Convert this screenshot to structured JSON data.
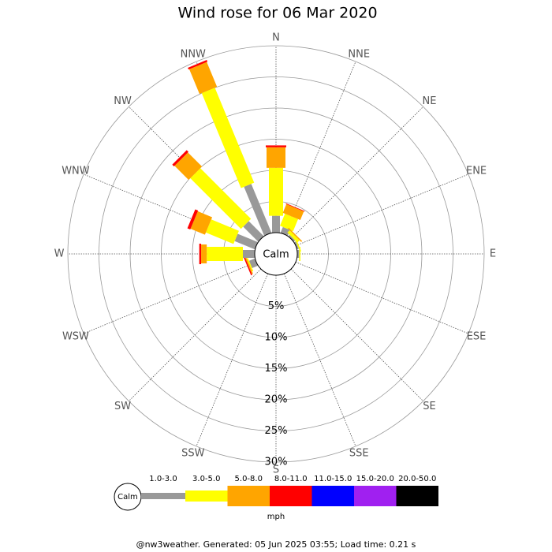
{
  "chart_data": {
    "type": "windrose",
    "title": "Wind rose for 06 Mar 2020",
    "categories": [
      "N",
      "NNE",
      "NE",
      "ENE",
      "E",
      "ESE",
      "SE",
      "SSE",
      "S",
      "SSW",
      "SW",
      "WSW",
      "W",
      "WNW",
      "NW",
      "NNW"
    ],
    "calm_label": "Calm",
    "series": [
      {
        "name": "1.0-3.0",
        "color": "#999999",
        "values": [
          2.7,
          1.0,
          0.3,
          0.3,
          0.3,
          0,
          0,
          0,
          0,
          0,
          0,
          1.0,
          1.9,
          3.5,
          3.4,
          8.5
        ]
      },
      {
        "name": "3.0-5.0",
        "color": "#ffff00",
        "values": [
          7.7,
          2.1,
          0.5,
          0.2,
          0.2,
          0,
          0,
          0,
          0,
          0,
          0,
          0.2,
          5.8,
          4.8,
          11.5,
          16.5
        ]
      },
      {
        "name": "5.0-8.0",
        "color": "#ffa500",
        "values": [
          3.3,
          1.5,
          0.2,
          0,
          0,
          0,
          0,
          0,
          0,
          0,
          0,
          0.2,
          0.9,
          2.5,
          3.2,
          4.3
        ]
      },
      {
        "name": "8.0-11.0",
        "color": "#ff0000",
        "values": [
          0.3,
          0.1,
          0,
          0,
          0,
          0,
          0,
          0,
          0,
          0,
          0,
          0.2,
          0.3,
          0.5,
          0.4,
          0.3
        ]
      },
      {
        "name": "11.0-15.0",
        "color": "#0000ff",
        "values": [
          0,
          0,
          0,
          0,
          0,
          0,
          0,
          0,
          0,
          0,
          0,
          0,
          0,
          0,
          0,
          0
        ]
      },
      {
        "name": "15.0-20.0",
        "color": "#a020f0",
        "values": [
          0,
          0,
          0,
          0,
          0,
          0,
          0,
          0,
          0,
          0,
          0,
          0,
          0,
          0,
          0,
          0
        ]
      },
      {
        "name": "20.0-50.0",
        "color": "#000000",
        "values": [
          0,
          0,
          0,
          0,
          0,
          0,
          0,
          0,
          0,
          0,
          0,
          0,
          0,
          0,
          0,
          0
        ]
      }
    ],
    "rlim": [
      0,
      30
    ],
    "rticks": [
      {
        "value": 5,
        "label": "5%"
      },
      {
        "value": 10,
        "label": "10%"
      },
      {
        "value": 15,
        "label": "15%"
      },
      {
        "value": 20,
        "label": "20%"
      },
      {
        "value": 25,
        "label": "25%"
      },
      {
        "value": 30,
        "label": "30%"
      }
    ],
    "units": "mph",
    "footer": "@nw3weather. Generated: 05 Jun 2025 03:55; Load time: 0.21 s"
  }
}
